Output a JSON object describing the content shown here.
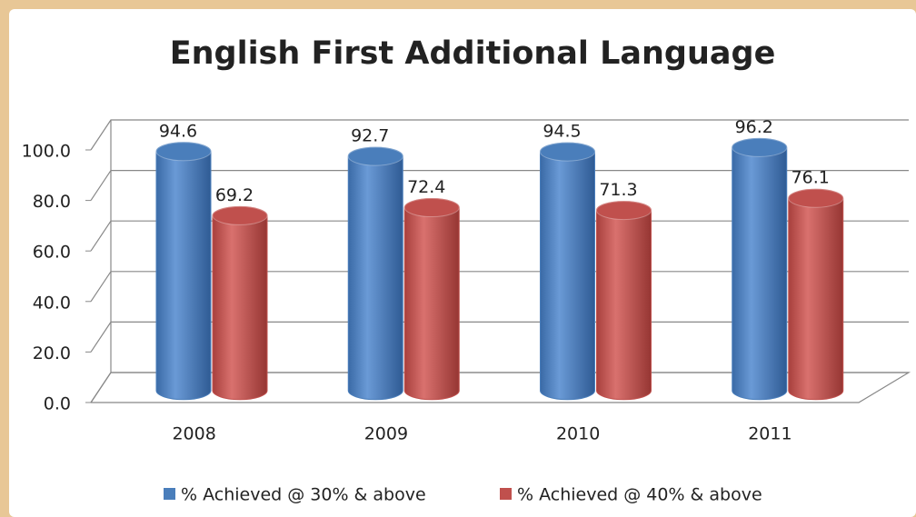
{
  "chart_data": {
    "type": "bar3d",
    "title": "English First Additional Language",
    "categories": [
      "2008",
      "2009",
      "2010",
      "2011"
    ],
    "series": [
      {
        "name": "% Achieved @ 30% & above",
        "color": "#4a7ebb",
        "values": [
          94.6,
          92.7,
          94.5,
          96.2
        ]
      },
      {
        "name": "% Achieved @ 40% & above",
        "color": "#c0504d",
        "values": [
          69.2,
          72.4,
          71.3,
          76.1
        ]
      }
    ],
    "ylim": [
      0,
      100
    ],
    "yticks": [
      {
        "value": 0,
        "label": "0.0"
      },
      {
        "value": 20,
        "label": "20.0"
      },
      {
        "value": 40,
        "label": "40.0"
      },
      {
        "value": 60,
        "label": "60.0"
      },
      {
        "value": 80,
        "label": "80.0"
      },
      {
        "value": 100,
        "label": "100.0"
      }
    ],
    "grid": true,
    "legend": "bottom"
  }
}
